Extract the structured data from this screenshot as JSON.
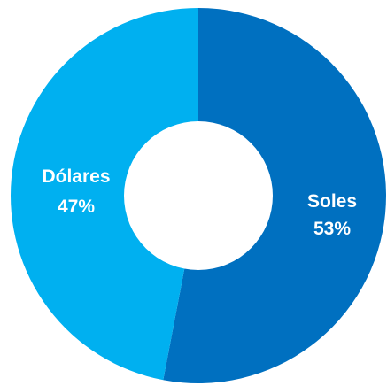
{
  "chart_data": {
    "type": "pie",
    "variant": "donut",
    "slices": [
      {
        "name": "Soles",
        "percent_label": "53%",
        "value": 53,
        "color": "#0070c0"
      },
      {
        "name": "Dólares",
        "percent_label": "47%",
        "value": 47,
        "color": "#00b0f0"
      }
    ],
    "start_angle_deg": 0,
    "direction": "clockwise",
    "legend": "none"
  }
}
